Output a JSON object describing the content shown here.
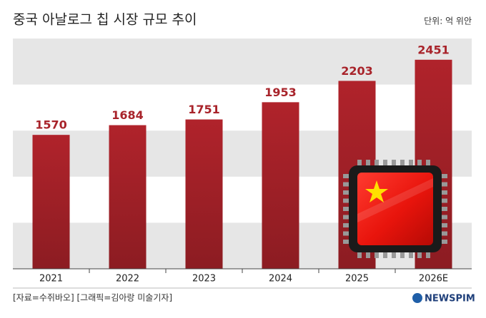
{
  "chart_data": {
    "type": "bar",
    "title": "중국 아날로그 칩 시장 규모 추이",
    "unit": "단위: 억 위안",
    "categories": [
      "2021",
      "2022",
      "2023",
      "2024",
      "2025",
      "2026E"
    ],
    "values": [
      1570,
      1684,
      1751,
      1953,
      2203,
      2451
    ],
    "color": "#a8232a",
    "ylim": [
      0,
      2700
    ],
    "source": "[자료=수쥐바오] [그래픽=김아랑 미술기자]",
    "logo": "NEWSPIM"
  }
}
